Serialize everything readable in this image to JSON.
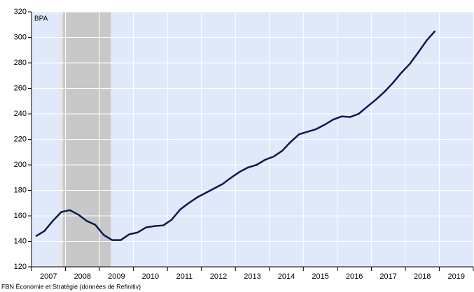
{
  "chart_data": {
    "type": "line",
    "y_label": "BPA",
    "source": "FBN Économie et Stratégie (données de Refinitiv)",
    "x": [
      2007.125,
      2007.375,
      2007.625,
      2007.875,
      2008.125,
      2008.375,
      2008.625,
      2008.875,
      2009.125,
      2009.375,
      2009.625,
      2009.875,
      2010.125,
      2010.375,
      2010.625,
      2010.875,
      2011.125,
      2011.375,
      2011.625,
      2011.875,
      2012.125,
      2012.375,
      2012.625,
      2012.875,
      2013.125,
      2013.375,
      2013.625,
      2013.875,
      2014.125,
      2014.375,
      2014.625,
      2014.875,
      2015.125,
      2015.375,
      2015.625,
      2015.875,
      2016.125,
      2016.375,
      2016.625,
      2016.875,
      2017.125,
      2017.375,
      2017.625,
      2017.875,
      2018.125,
      2018.375,
      2018.625,
      2018.875
    ],
    "series": [
      {
        "color": "#0b1a4f",
        "values": [
          144,
          148,
          156,
          163,
          164.5,
          161,
          156,
          153,
          145,
          141,
          141,
          145.5,
          147,
          151,
          152,
          152.5,
          157,
          165,
          170,
          174.5,
          178,
          181.5,
          185,
          190,
          194.5,
          198,
          200,
          204,
          206.5,
          211,
          218,
          224,
          226,
          228,
          231.5,
          235.5,
          238,
          237.5,
          240,
          245.5,
          251,
          257,
          264,
          272,
          279,
          288,
          297.5,
          305
        ]
      }
    ],
    "shaded_periods": [
      {
        "start": 2007.82,
        "end": 2007.92,
        "color": "#e6e6e6"
      },
      {
        "start": 2007.92,
        "end": 2009.33,
        "color": "#c8c8c8"
      }
    ],
    "xlim": [
      2007,
      2020
    ],
    "xticks": [
      {
        "value": 2007.5,
        "label": "2007"
      },
      {
        "value": 2008.5,
        "label": "2008"
      },
      {
        "value": 2009.5,
        "label": "2009"
      },
      {
        "value": 2010.5,
        "label": "2010"
      },
      {
        "value": 2011.5,
        "label": "2011"
      },
      {
        "value": 2012.5,
        "label": "2012"
      },
      {
        "value": 2013.5,
        "label": "2013"
      },
      {
        "value": 2014.5,
        "label": "2014"
      },
      {
        "value": 2015.5,
        "label": "2015"
      },
      {
        "value": 2016.5,
        "label": "2016"
      },
      {
        "value": 2017.5,
        "label": "2017"
      },
      {
        "value": 2018.5,
        "label": "2018"
      },
      {
        "value": 2019.5,
        "label": "2019"
      }
    ],
    "ylim": [
      120,
      320
    ],
    "yticks": [
      120,
      140,
      160,
      180,
      200,
      220,
      240,
      260,
      280,
      300,
      320
    ],
    "grid": true,
    "background": "#dfe9fa"
  }
}
